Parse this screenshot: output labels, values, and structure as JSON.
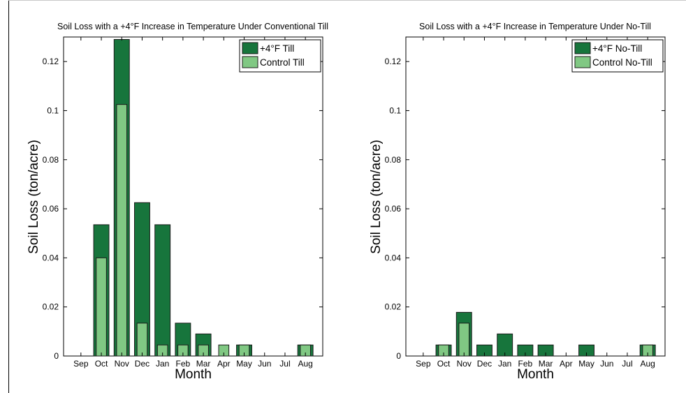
{
  "colors": {
    "dark": "#17753c",
    "light": "#80c883",
    "edge": "#1b1b1b"
  },
  "chart_data": [
    {
      "type": "bar",
      "title": "Soil Loss with a +4°F Increase in Temperature Under Conventional Till",
      "xlabel": "Month",
      "ylabel": "Soil Loss (ton/acre)",
      "ylim": [
        0,
        0.13
      ],
      "yticks": [
        "0",
        "0.02",
        "0.04",
        "0.06",
        "0.08",
        "0.1",
        "0.12"
      ],
      "categories": [
        "Sep",
        "Oct",
        "Nov",
        "Dec",
        "Jan",
        "Feb",
        "Mar",
        "Apr",
        "May",
        "Jun",
        "Jul",
        "Aug"
      ],
      "legend_position": "top-right",
      "series": [
        {
          "name": "+4°F Till",
          "values": [
            0,
            0.0535,
            0.129,
            0.0625,
            0.0535,
            0.0134,
            0.009,
            0,
            0.0045,
            0,
            0,
            0.0045
          ]
        },
        {
          "name": "Control Till",
          "values": [
            0,
            0.04,
            0.1025,
            0.0134,
            0.0045,
            0.0045,
            0.0045,
            0.0045,
            0.0045,
            0,
            0,
            0.0045
          ]
        }
      ]
    },
    {
      "type": "bar",
      "title": "Soil Loss with a +4°F Increase in Temperature Under No-Till",
      "xlabel": "Month",
      "ylabel": "Soil Loss (ton/acre)",
      "ylim": [
        0,
        0.13
      ],
      "yticks": [
        "0",
        "0.02",
        "0.04",
        "0.06",
        "0.08",
        "0.1",
        "0.12"
      ],
      "categories": [
        "Sep",
        "Oct",
        "Nov",
        "Dec",
        "Jan",
        "Feb",
        "Mar",
        "Apr",
        "May",
        "Jun",
        "Jul",
        "Aug"
      ],
      "legend_position": "top-right",
      "series": [
        {
          "name": "+4°F No-Till",
          "values": [
            0,
            0.0045,
            0.0178,
            0.0045,
            0.009,
            0.0045,
            0.0045,
            0,
            0.0045,
            0,
            0,
            0.0045
          ]
        },
        {
          "name": "Control No-Till",
          "values": [
            0,
            0.0045,
            0.0134,
            0,
            0,
            0,
            0,
            0,
            0,
            0,
            0,
            0.0045
          ]
        }
      ]
    }
  ]
}
